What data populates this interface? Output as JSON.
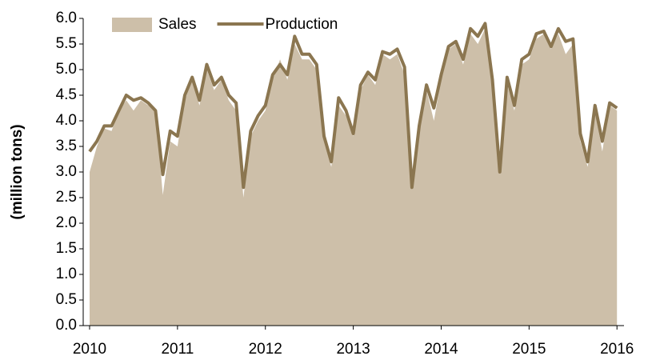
{
  "chart_data": {
    "type": "area-line",
    "y_label": "(million tons)",
    "legend": "top-left",
    "xlim": [
      2010,
      2016.08
    ],
    "xticks": [
      2010,
      2011,
      2012,
      2013,
      2014,
      2015,
      2016
    ],
    "ylim": [
      0,
      6
    ],
    "yticks": [
      {
        "value": 0,
        "label": "0.0"
      },
      0.5,
      {
        "value": 1,
        "label": "1.0"
      },
      1.5,
      {
        "value": 2,
        "label": "2.0"
      },
      2.5,
      {
        "value": 3,
        "label": "3.0"
      },
      3.5,
      {
        "value": 4,
        "label": "4.0"
      },
      4.5,
      {
        "value": 5,
        "label": "5.0"
      },
      5.5,
      {
        "value": 6,
        "label": "6.0"
      }
    ],
    "x": [
      2010,
      2010.083,
      2010.167,
      2010.25,
      2010.333,
      2010.417,
      2010.5,
      2010.583,
      2010.667,
      2010.75,
      2010.833,
      2010.917,
      2011,
      2011.083,
      2011.167,
      2011.25,
      2011.333,
      2011.417,
      2011.5,
      2011.583,
      2011.667,
      2011.75,
      2011.833,
      2011.917,
      2012,
      2012.083,
      2012.167,
      2012.25,
      2012.333,
      2012.417,
      2012.5,
      2012.583,
      2012.667,
      2012.75,
      2012.833,
      2012.917,
      2013,
      2013.083,
      2013.167,
      2013.25,
      2013.333,
      2013.417,
      2013.5,
      2013.583,
      2013.667,
      2013.75,
      2013.833,
      2013.917,
      2014,
      2014.083,
      2014.167,
      2014.25,
      2014.333,
      2014.417,
      2014.5,
      2014.583,
      2014.667,
      2014.75,
      2014.833,
      2014.917,
      2015,
      2015.083,
      2015.167,
      2015.25,
      2015.333,
      2015.417,
      2015.5,
      2015.583,
      2015.667,
      2015.75,
      2015.833,
      2015.917,
      2016
    ],
    "series": [
      {
        "name": "Sales",
        "kind": "area",
        "color": "#cdbfa9",
        "values": [
          3.0,
          3.5,
          3.85,
          3.8,
          4.2,
          4.4,
          4.2,
          4.4,
          4.3,
          4.2,
          2.55,
          3.6,
          3.5,
          4.4,
          4.8,
          4.3,
          5.0,
          4.6,
          4.8,
          4.4,
          4.2,
          2.5,
          3.7,
          4.0,
          4.2,
          4.8,
          5.2,
          4.8,
          5.5,
          5.2,
          5.2,
          5.0,
          3.6,
          3.1,
          4.3,
          4.1,
          3.7,
          4.6,
          4.9,
          4.7,
          5.3,
          5.2,
          5.3,
          4.9,
          2.7,
          3.8,
          4.6,
          4.0,
          4.8,
          5.4,
          5.5,
          5.1,
          5.7,
          5.5,
          5.8,
          4.6,
          3.0,
          4.7,
          4.2,
          5.1,
          5.2,
          5.6,
          5.7,
          5.4,
          5.7,
          5.3,
          5.5,
          3.6,
          3.1,
          4.2,
          3.4,
          4.3,
          4.2
        ]
      },
      {
        "name": "Production",
        "kind": "line",
        "color": "#8b7650",
        "values": [
          3.4,
          3.6,
          3.9,
          3.9,
          4.2,
          4.5,
          4.4,
          4.45,
          4.35,
          4.2,
          2.95,
          3.8,
          3.7,
          4.5,
          4.85,
          4.4,
          5.1,
          4.7,
          4.85,
          4.5,
          4.35,
          2.7,
          3.8,
          4.1,
          4.3,
          4.9,
          5.1,
          4.9,
          5.65,
          5.3,
          5.3,
          5.1,
          3.7,
          3.2,
          4.45,
          4.2,
          3.75,
          4.7,
          4.95,
          4.8,
          5.35,
          5.3,
          5.4,
          5.05,
          2.7,
          3.9,
          4.7,
          4.25,
          4.9,
          5.45,
          5.55,
          5.2,
          5.8,
          5.65,
          5.9,
          4.8,
          3.0,
          4.85,
          4.3,
          5.2,
          5.3,
          5.7,
          5.75,
          5.45,
          5.8,
          5.55,
          5.6,
          3.75,
          3.2,
          4.3,
          3.6,
          4.35,
          4.25
        ]
      }
    ]
  }
}
